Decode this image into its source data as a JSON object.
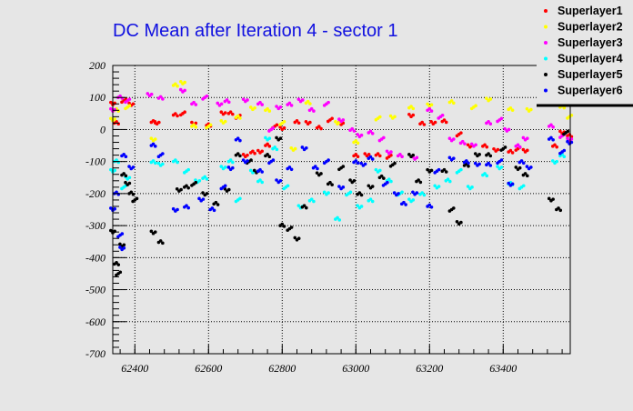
{
  "chart_data": {
    "type": "scatter",
    "title": "DC Mean after Iteration 4 - sector 1",
    "xlabel": "",
    "ylabel": "",
    "xlim": [
      62340,
      63582
    ],
    "ylim": [
      -700,
      200
    ],
    "xticks": [
      62400,
      62600,
      62800,
      63000,
      63200,
      63400
    ],
    "yticks": [
      -700,
      -600,
      -500,
      -400,
      -300,
      -200,
      -100,
      0,
      100,
      200
    ],
    "grid": true,
    "legend_placement": "top-right",
    "series": [
      {
        "name": "Superlayer1",
        "color": "#ff0000",
        "points": [
          [
            62340,
            80
          ],
          [
            62350,
            20
          ],
          [
            62370,
            90
          ],
          [
            62390,
            80
          ],
          [
            62450,
            25
          ],
          [
            62460,
            20
          ],
          [
            62510,
            45
          ],
          [
            62530,
            50
          ],
          [
            62560,
            20
          ],
          [
            62600,
            15
          ],
          [
            62640,
            50
          ],
          [
            62660,
            50
          ],
          [
            62680,
            40
          ],
          [
            62700,
            -80
          ],
          [
            62720,
            -70
          ],
          [
            62740,
            -70
          ],
          [
            62760,
            -50
          ],
          [
            62780,
            10
          ],
          [
            62800,
            5
          ],
          [
            62840,
            25
          ],
          [
            62870,
            20
          ],
          [
            62900,
            5
          ],
          [
            62930,
            30
          ],
          [
            62960,
            20
          ],
          [
            63000,
            -80
          ],
          [
            63030,
            -80
          ],
          [
            63060,
            -80
          ],
          [
            63090,
            -85
          ],
          [
            63150,
            45
          ],
          [
            63180,
            20
          ],
          [
            63210,
            20
          ],
          [
            63240,
            25
          ],
          [
            63280,
            -15
          ],
          [
            63310,
            -50
          ],
          [
            63350,
            -50
          ],
          [
            63380,
            -65
          ],
          [
            63420,
            -70
          ],
          [
            63440,
            -60
          ],
          [
            63460,
            -65
          ],
          [
            63540,
            -50
          ],
          [
            63560,
            -10
          ],
          [
            63580,
            -20
          ]
        ]
      },
      {
        "name": "Superlayer2",
        "color": "#ffff00",
        "points": [
          [
            62340,
            30
          ],
          [
            62350,
            60
          ],
          [
            62380,
            70
          ],
          [
            62450,
            -30
          ],
          [
            62510,
            140
          ],
          [
            62530,
            145
          ],
          [
            62560,
            10
          ],
          [
            62600,
            10
          ],
          [
            62640,
            25
          ],
          [
            62680,
            40
          ],
          [
            62720,
            65
          ],
          [
            62760,
            60
          ],
          [
            62800,
            20
          ],
          [
            62830,
            -60
          ],
          [
            62870,
            85
          ],
          [
            62950,
            20
          ],
          [
            63000,
            -40
          ],
          [
            63060,
            35
          ],
          [
            63100,
            40
          ],
          [
            63150,
            70
          ],
          [
            63200,
            75
          ],
          [
            63260,
            85
          ],
          [
            63320,
            70
          ],
          [
            63360,
            95
          ],
          [
            63420,
            65
          ],
          [
            63470,
            60
          ],
          [
            63560,
            70
          ],
          [
            63580,
            40
          ]
        ]
      },
      {
        "name": "Superlayer3",
        "color": "#ff00ff",
        "points": [
          [
            62340,
            60
          ],
          [
            62360,
            100
          ],
          [
            62380,
            90
          ],
          [
            62440,
            110
          ],
          [
            62470,
            100
          ],
          [
            62530,
            120
          ],
          [
            62560,
            80
          ],
          [
            62590,
            100
          ],
          [
            62630,
            80
          ],
          [
            62650,
            90
          ],
          [
            62700,
            90
          ],
          [
            62740,
            80
          ],
          [
            62770,
            0
          ],
          [
            62790,
            70
          ],
          [
            62820,
            80
          ],
          [
            62850,
            90
          ],
          [
            62880,
            60
          ],
          [
            62920,
            80
          ],
          [
            62960,
            30
          ],
          [
            62990,
            0
          ],
          [
            63010,
            -20
          ],
          [
            63040,
            -10
          ],
          [
            63070,
            -30
          ],
          [
            63090,
            -70
          ],
          [
            63120,
            -80
          ],
          [
            63160,
            -90
          ],
          [
            63200,
            60
          ],
          [
            63230,
            40
          ],
          [
            63260,
            -30
          ],
          [
            63290,
            -40
          ],
          [
            63320,
            -50
          ],
          [
            63360,
            20
          ],
          [
            63390,
            30
          ],
          [
            63410,
            0
          ],
          [
            63440,
            -50
          ],
          [
            63460,
            -30
          ],
          [
            63530,
            10
          ],
          [
            63560,
            -20
          ],
          [
            63580,
            -30
          ]
        ]
      },
      {
        "name": "Superlayer4",
        "color": "#00ffff",
        "points": [
          [
            62340,
            -130
          ],
          [
            62350,
            -100
          ],
          [
            62370,
            -180
          ],
          [
            62380,
            -150
          ],
          [
            62450,
            -100
          ],
          [
            62470,
            -110
          ],
          [
            62510,
            -100
          ],
          [
            62540,
            -130
          ],
          [
            62570,
            -160
          ],
          [
            62590,
            -150
          ],
          [
            62640,
            -120
          ],
          [
            62660,
            -100
          ],
          [
            62680,
            -220
          ],
          [
            62720,
            -130
          ],
          [
            62740,
            -160
          ],
          [
            62760,
            -30
          ],
          [
            62780,
            -60
          ],
          [
            62810,
            -180
          ],
          [
            62850,
            -240
          ],
          [
            62880,
            -220
          ],
          [
            62920,
            -200
          ],
          [
            62950,
            -280
          ],
          [
            62980,
            -200
          ],
          [
            63010,
            -240
          ],
          [
            63040,
            -220
          ],
          [
            63060,
            -130
          ],
          [
            63090,
            -160
          ],
          [
            63120,
            -200
          ],
          [
            63150,
            -220
          ],
          [
            63180,
            -200
          ],
          [
            63220,
            -180
          ],
          [
            63250,
            -160
          ],
          [
            63280,
            -130
          ],
          [
            63310,
            -180
          ],
          [
            63350,
            -140
          ],
          [
            63390,
            -120
          ],
          [
            63420,
            -170
          ],
          [
            63450,
            -180
          ],
          [
            63540,
            -100
          ],
          [
            63560,
            -80
          ]
        ]
      },
      {
        "name": "Superlayer5",
        "color": "#000000",
        "points": [
          [
            62340,
            -320
          ],
          [
            62350,
            -420
          ],
          [
            62355,
            -450
          ],
          [
            62365,
            -360
          ],
          [
            62370,
            -140
          ],
          [
            62380,
            -170
          ],
          [
            62390,
            -200
          ],
          [
            62400,
            -220
          ],
          [
            62450,
            -320
          ],
          [
            62470,
            -350
          ],
          [
            62520,
            -190
          ],
          [
            62540,
            -180
          ],
          [
            62560,
            -170
          ],
          [
            62590,
            -200
          ],
          [
            62620,
            -230
          ],
          [
            62650,
            -190
          ],
          [
            62680,
            -80
          ],
          [
            62710,
            -100
          ],
          [
            62730,
            -130
          ],
          [
            62760,
            -80
          ],
          [
            62790,
            -30
          ],
          [
            62800,
            -300
          ],
          [
            62820,
            -310
          ],
          [
            62840,
            -340
          ],
          [
            62860,
            -240
          ],
          [
            62900,
            -140
          ],
          [
            62930,
            -170
          ],
          [
            62960,
            -120
          ],
          [
            62990,
            -160
          ],
          [
            63010,
            -200
          ],
          [
            63040,
            -180
          ],
          [
            63070,
            -150
          ],
          [
            63100,
            -110
          ],
          [
            63150,
            -80
          ],
          [
            63170,
            -160
          ],
          [
            63200,
            -130
          ],
          [
            63240,
            -130
          ],
          [
            63260,
            -250
          ],
          [
            63280,
            -290
          ],
          [
            63300,
            -110
          ],
          [
            63330,
            -80
          ],
          [
            63360,
            -80
          ],
          [
            63400,
            -60
          ],
          [
            63440,
            -120
          ],
          [
            63460,
            -140
          ],
          [
            63530,
            -220
          ],
          [
            63550,
            -250
          ],
          [
            63570,
            -10
          ]
        ]
      },
      {
        "name": "Superlayer6",
        "color": "#0000ff",
        "points": [
          [
            62340,
            -250
          ],
          [
            62350,
            -200
          ],
          [
            62360,
            -330
          ],
          [
            62365,
            -370
          ],
          [
            62370,
            -80
          ],
          [
            62390,
            -120
          ],
          [
            62450,
            -50
          ],
          [
            62470,
            -80
          ],
          [
            62510,
            -250
          ],
          [
            62540,
            -240
          ],
          [
            62580,
            -220
          ],
          [
            62610,
            -250
          ],
          [
            62640,
            -180
          ],
          [
            62660,
            -120
          ],
          [
            62680,
            -30
          ],
          [
            62700,
            -100
          ],
          [
            62740,
            -130
          ],
          [
            62770,
            -100
          ],
          [
            62790,
            -160
          ],
          [
            62820,
            -120
          ],
          [
            62860,
            -60
          ],
          [
            62890,
            -120
          ],
          [
            62920,
            -100
          ],
          [
            62960,
            -180
          ],
          [
            63000,
            -100
          ],
          [
            63020,
            -110
          ],
          [
            63040,
            -90
          ],
          [
            63080,
            -170
          ],
          [
            63110,
            -200
          ],
          [
            63130,
            -230
          ],
          [
            63160,
            -200
          ],
          [
            63200,
            -240
          ],
          [
            63220,
            -130
          ],
          [
            63260,
            -90
          ],
          [
            63300,
            -100
          ],
          [
            63330,
            -110
          ],
          [
            63360,
            -110
          ],
          [
            63390,
            -100
          ],
          [
            63420,
            -170
          ],
          [
            63450,
            -100
          ],
          [
            63470,
            -120
          ],
          [
            63530,
            -30
          ],
          [
            63560,
            -70
          ],
          [
            63580,
            -40
          ]
        ]
      }
    ]
  }
}
